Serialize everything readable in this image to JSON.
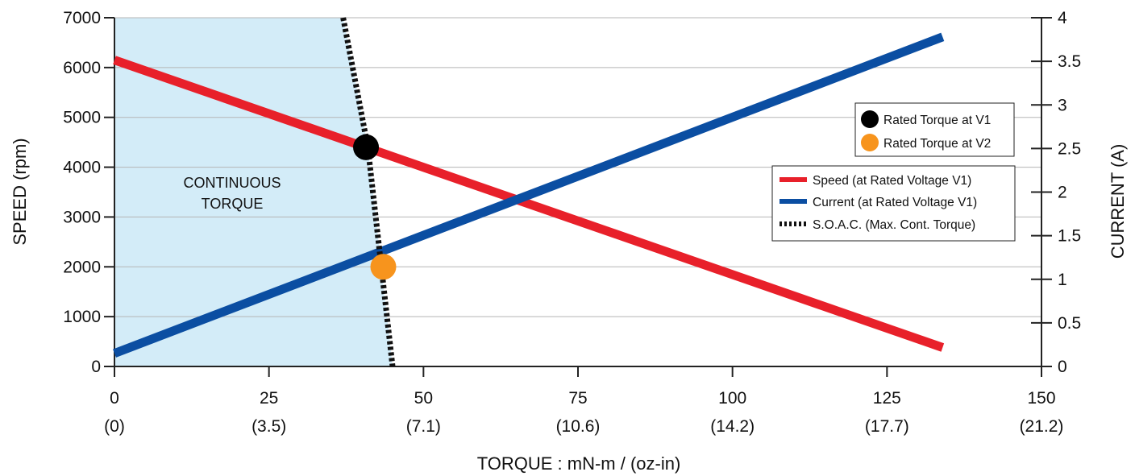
{
  "chart_data": {
    "type": "line",
    "x_axis": {
      "label": "TORQUE : mN-m / (oz-in)",
      "range": [
        0,
        150
      ],
      "ticks": [
        {
          "value": 0,
          "label": "0",
          "sublabel": "(0)"
        },
        {
          "value": 25,
          "label": "25",
          "sublabel": "(3.5)"
        },
        {
          "value": 50,
          "label": "50",
          "sublabel": "(7.1)"
        },
        {
          "value": 75,
          "label": "75",
          "sublabel": "(10.6)"
        },
        {
          "value": 100,
          "label": "100",
          "sublabel": "(14.2)"
        },
        {
          "value": 125,
          "label": "125",
          "sublabel": "(17.7)"
        },
        {
          "value": 150,
          "label": "150",
          "sublabel": "(21.2)"
        }
      ]
    },
    "y_axis_left": {
      "label": "SPEED (rpm)",
      "range": [
        0,
        7000
      ],
      "ticks": [
        "0",
        "1000",
        "2000",
        "3000",
        "4000",
        "5000",
        "6000",
        "7000"
      ]
    },
    "y_axis_right": {
      "label": "CURRENT (A)",
      "range": [
        0,
        4
      ],
      "ticks": [
        "0",
        "0.5",
        "1",
        "1.5",
        "2",
        "2.5",
        "3",
        "3.5",
        "4"
      ]
    },
    "grid": "horizontal",
    "series": [
      {
        "name": "Speed (at Rated Voltage V1)",
        "axis": "left",
        "color": "#e8202a",
        "style": "solid",
        "x": [
          0,
          134
        ],
        "y": [
          6150,
          380
        ]
      },
      {
        "name": "Current (at Rated Voltage V1)",
        "axis": "right",
        "color": "#0b4ea2",
        "style": "solid",
        "x": [
          0,
          134
        ],
        "y": [
          0.15,
          3.78
        ]
      },
      {
        "name": "S.O.A.C. (Max. Cont. Torque)",
        "axis": "left",
        "color": "#111111",
        "style": "dotted",
        "x": [
          37,
          41,
          45
        ],
        "y": [
          7000,
          4400,
          0
        ]
      }
    ],
    "shaded_region": {
      "label_lines": [
        "CONTINUOUS",
        "TORQUE"
      ],
      "color": "#d3ecf8",
      "boundary_series": "S.O.A.C. (Max. Cont. Torque)"
    },
    "points": [
      {
        "name": "Rated Torque at V1",
        "axis": "left",
        "x": 40.7,
        "y": 4400,
        "color": "#000000"
      },
      {
        "name": "Rated Torque at V2",
        "axis": "left",
        "x": 43.5,
        "y": 2000,
        "color": "#f7941d"
      }
    ],
    "legend_placement": "right",
    "point_legend_placement": "top-right"
  }
}
